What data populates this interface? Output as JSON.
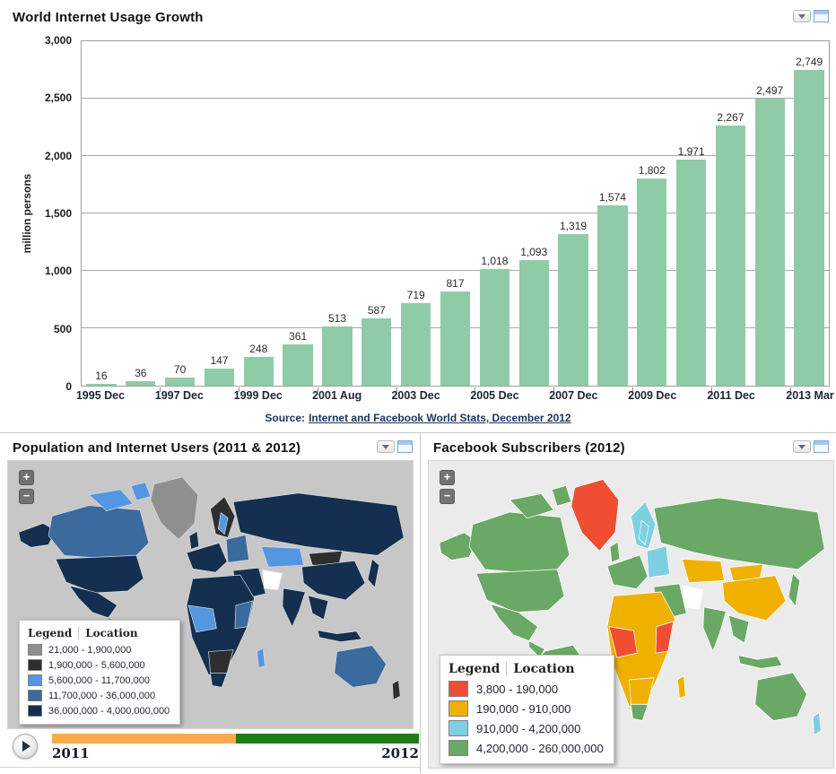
{
  "icons": {
    "zoom_in": "+",
    "zoom_out": "−"
  },
  "chart_data": {
    "type": "bar",
    "title": "World Internet Usage Growth",
    "xlabel": "",
    "ylabel": "million persons",
    "ylim": [
      0,
      3000
    ],
    "yticks": [
      0,
      500,
      1000,
      1500,
      2000,
      2500,
      3000
    ],
    "grid": true,
    "bar_color": "#90cba8",
    "values": [
      16,
      36,
      70,
      147,
      248,
      361,
      513,
      587,
      719,
      817,
      1018,
      1093,
      1319,
      1574,
      1802,
      1971,
      2267,
      2497,
      2749
    ],
    "x_tick_labels": [
      "1995 Dec",
      "1997 Dec",
      "1999 Dec",
      "2001 Aug",
      "2003 Dec",
      "2005 Dec",
      "2007 Dec",
      "2009 Dec",
      "2011 Dec",
      "2013 Mar"
    ],
    "x_tick_bar_indices": [
      0,
      2,
      4,
      6,
      8,
      10,
      12,
      14,
      16,
      18
    ],
    "data_labels_shown": true
  },
  "panels": {
    "usage": {
      "title": "World Internet Usage Growth",
      "source_prefix": "Source:",
      "source_link": "Internet and Facebook World Stats, December 2012"
    },
    "population": {
      "title": "Population and Internet Users (2011 & 2012)",
      "map_bg": "#c7c7c7",
      "legend": {
        "header_left": "Legend",
        "header_right": "Location",
        "items": [
          {
            "color": "#8f8f8f",
            "label": "21,000 - 1,900,000"
          },
          {
            "color": "#2e2e2e",
            "label": "1,900,000 - 5,600,000"
          },
          {
            "color": "#5596e2",
            "label": "5,600,000 - 11,700,000"
          },
          {
            "color": "#3a6a9e",
            "label": "11,700,000 - 36,000,000"
          },
          {
            "color": "#142f4f",
            "label": "36,000,000 - 4,000,000,000"
          }
        ]
      },
      "timeline": {
        "start_label": "2011",
        "end_label": "2012",
        "segment_colors": [
          "#f9ab4e",
          "#1e7d14"
        ],
        "split_pct": 50
      },
      "region_colors": {
        "alaska": "#142f4f",
        "canada": "#3a6a9e",
        "arctic-islands": "#5596e2",
        "greenland": "#8f8f8f",
        "usa": "#142f4f",
        "mexico": "#142f4f",
        "central-america": "#3a6a9e",
        "south-america": "#142f4f",
        "peru": "#3a6a9e",
        "chile": "#5596e2",
        "scandinavia": "#2e2e2e",
        "sweden": "#5596e2",
        "uk": "#142f4f",
        "europe-west": "#142f4f",
        "europe-east": "#3a6a9e",
        "russia": "#142f4f",
        "kazakhstan": "#5596e2",
        "mongolia": "#2e2e2e",
        "china": "#142f4f",
        "japan": "#142f4f",
        "middle-east": "#142f4f",
        "iran": "#ffffff",
        "india": "#142f4f",
        "se-asia": "#142f4f",
        "indonesia": "#142f4f",
        "north-africa": "#142f4f",
        "west-africa": "#5596e2",
        "east-africa": "#3a6a9e",
        "southern-africa": "#2e2e2e",
        "south-africa": "#142f4f",
        "madagascar": "#5596e2",
        "australia": "#3a6a9e",
        "new-zealand": "#2e2e2e"
      }
    },
    "facebook": {
      "title": "Facebook Subscribers (2012)",
      "map_bg": "#ebebeb",
      "legend": {
        "header_left": "Legend",
        "header_right": "Location",
        "items": [
          {
            "color": "#ef4e33",
            "label": "3,800 - 190,000"
          },
          {
            "color": "#efb000",
            "label": "190,000 - 910,000"
          },
          {
            "color": "#7ecfe0",
            "label": "910,000 - 4,200,000"
          },
          {
            "color": "#69a865",
            "label": "4,200,000 - 260,000,000"
          }
        ]
      },
      "region_colors": {
        "alaska": "#69a865",
        "canada": "#69a865",
        "arctic-islands": "#69a865",
        "greenland": "#ef4e33",
        "usa": "#69a865",
        "mexico": "#69a865",
        "central-america": "#69a865",
        "south-america": "#69a865",
        "peru": "#7ecfe0",
        "chile": "#69a865",
        "scandinavia": "#7ecfe0",
        "sweden": "#7ecfe0",
        "uk": "#69a865",
        "europe-west": "#69a865",
        "europe-east": "#7ecfe0",
        "russia": "#69a865",
        "kazakhstan": "#efb000",
        "mongolia": "#efb000",
        "china": "#efb000",
        "japan": "#69a865",
        "middle-east": "#69a865",
        "iran": "#ffffff",
        "india": "#69a865",
        "se-asia": "#69a865",
        "indonesia": "#69a865",
        "north-africa": "#efb000",
        "west-africa": "#ef4e33",
        "east-africa": "#ef4e33",
        "southern-africa": "#efb000",
        "south-africa": "#69a865",
        "madagascar": "#efb000",
        "australia": "#69a865",
        "new-zealand": "#7ecfe0"
      }
    }
  }
}
